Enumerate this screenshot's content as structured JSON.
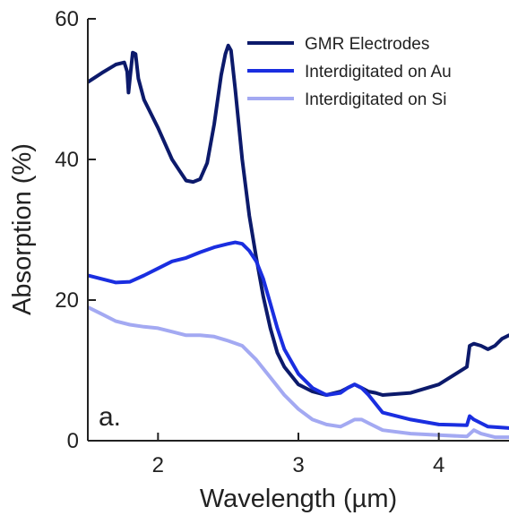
{
  "chart_data": {
    "type": "line",
    "xlabel": "Wavelength (µm)",
    "ylabel": "Absorption (%)",
    "xlim": [
      1.5,
      4.5
    ],
    "ylim": [
      0,
      60
    ],
    "xticks": [
      2,
      3,
      4
    ],
    "yticks": [
      0,
      20,
      40,
      60
    ],
    "grid": false,
    "legend": "top-right",
    "annotation": "a.",
    "series": [
      {
        "name": "GMR Electrodes",
        "color": "#0c1a6b",
        "x": [
          1.5,
          1.6,
          1.7,
          1.76,
          1.78,
          1.79,
          1.8,
          1.82,
          1.84,
          1.86,
          1.9,
          2.0,
          2.1,
          2.15,
          2.2,
          2.25,
          2.3,
          2.35,
          2.4,
          2.45,
          2.48,
          2.5,
          2.52,
          2.55,
          2.6,
          2.65,
          2.7,
          2.75,
          2.8,
          2.85,
          2.9,
          3.0,
          3.1,
          3.2,
          3.3,
          3.35,
          3.4,
          3.45,
          3.5,
          3.55,
          3.6,
          3.8,
          4.0,
          4.2,
          4.22,
          4.25,
          4.3,
          4.35,
          4.4,
          4.45,
          4.5
        ],
        "y": [
          51,
          52.3,
          53.5,
          53.8,
          52.5,
          49.5,
          51.5,
          55.2,
          55,
          51.5,
          48.5,
          44.5,
          40,
          38.5,
          37,
          36.8,
          37.2,
          39.5,
          45,
          52,
          55,
          56.2,
          55.5,
          50,
          40,
          32,
          26,
          20.5,
          16,
          12.5,
          10.5,
          8,
          7,
          6.5,
          7,
          7.5,
          8,
          7.5,
          7,
          6.8,
          6.5,
          6.8,
          8,
          10.5,
          13.5,
          13.8,
          13.5,
          13,
          13.5,
          14.5,
          15
        ]
      },
      {
        "name": "Interdigitated on Au",
        "color": "#1a2ee0",
        "x": [
          1.5,
          1.6,
          1.7,
          1.8,
          1.9,
          2.0,
          2.1,
          2.2,
          2.3,
          2.4,
          2.5,
          2.55,
          2.6,
          2.65,
          2.7,
          2.75,
          2.8,
          2.85,
          2.9,
          3.0,
          3.1,
          3.2,
          3.3,
          3.35,
          3.4,
          3.45,
          3.5,
          3.6,
          3.8,
          4.0,
          4.2,
          4.22,
          4.25,
          4.3,
          4.35,
          4.5
        ],
        "y": [
          23.5,
          23,
          22.5,
          22.6,
          23.5,
          24.5,
          25.5,
          26,
          26.8,
          27.5,
          28,
          28.2,
          28,
          27,
          25.5,
          23,
          19.5,
          16,
          13,
          9.5,
          7.5,
          6.5,
          6.8,
          7.5,
          8,
          7.5,
          6.5,
          4,
          3,
          2.3,
          2.2,
          3.5,
          3,
          2.5,
          2,
          1.8
        ]
      },
      {
        "name": "Interdigitated on Si",
        "color": "#a3a9f2",
        "x": [
          1.5,
          1.6,
          1.7,
          1.8,
          1.9,
          2.0,
          2.1,
          2.2,
          2.3,
          2.4,
          2.5,
          2.6,
          2.65,
          2.7,
          2.8,
          2.9,
          3.0,
          3.1,
          3.2,
          3.3,
          3.35,
          3.4,
          3.45,
          3.5,
          3.6,
          3.8,
          4.0,
          4.2,
          4.25,
          4.3,
          4.4,
          4.5
        ],
        "y": [
          19,
          18,
          17,
          16.5,
          16.2,
          16,
          15.5,
          15,
          15,
          14.8,
          14.2,
          13.5,
          12.5,
          11.5,
          9,
          6.5,
          4.5,
          3,
          2.3,
          2,
          2.5,
          3,
          3,
          2.5,
          1.5,
          1,
          0.8,
          0.6,
          1.5,
          1,
          0.5,
          0.5
        ]
      }
    ]
  }
}
